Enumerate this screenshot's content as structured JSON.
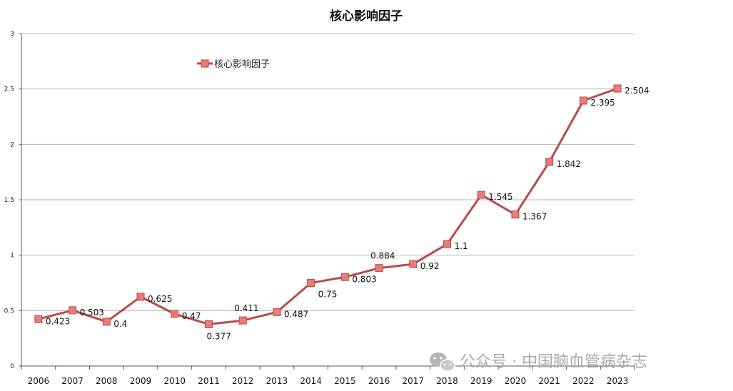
{
  "chart_data": {
    "type": "line",
    "title": "核心影响因子",
    "xlabel": "",
    "ylabel": "",
    "categories": [
      "2006",
      "2007",
      "2008",
      "2009",
      "2010",
      "2011",
      "2012",
      "2013",
      "2014",
      "2015",
      "2016",
      "2017",
      "2018",
      "2019",
      "2020",
      "2021",
      "2022",
      "2023"
    ],
    "series": [
      {
        "name": "核心影响因子",
        "values": [
          0.423,
          0.503,
          0.4,
          0.625,
          0.47,
          0.377,
          0.411,
          0.487,
          0.75,
          0.803,
          0.884,
          0.92,
          1.1,
          1.545,
          1.367,
          1.842,
          2.395,
          2.504
        ],
        "data_labels": [
          "0.423",
          "0.503",
          "0.4",
          "0.625",
          "0.47",
          "0.377",
          "0.411",
          "0.487",
          "0.75",
          "0.803",
          "0.884",
          "0.92",
          "1.1",
          "1.545",
          "1.367",
          "1.842",
          "2.395",
          "2.504"
        ],
        "color": "#b84a4a",
        "marker_color": "#e87b7b"
      }
    ],
    "ylim": [
      0,
      3
    ],
    "yticks": [
      "0",
      "0.5",
      "1",
      "1.5",
      "2",
      "2.5",
      "3"
    ],
    "grid": true,
    "legend_position": "top-left"
  },
  "watermark": {
    "text": "公众号 · 中国脑血管病杂志",
    "icon": "wechat-icon"
  }
}
